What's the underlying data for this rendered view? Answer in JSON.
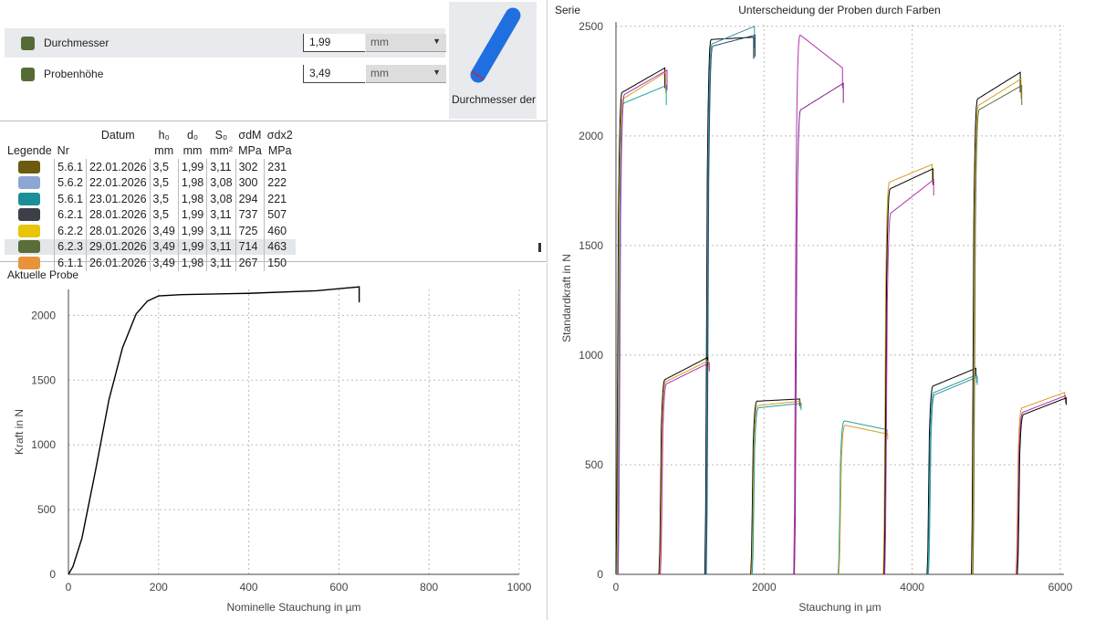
{
  "params": [
    {
      "label": "Durchmesser",
      "value": "1,99",
      "unit": "mm"
    },
    {
      "label": "Probenhöhe",
      "value": "3,49",
      "unit": "mm"
    }
  ],
  "image_caption": "Durchmesser der",
  "table": {
    "headers_top": [
      "",
      "",
      "Datum",
      "h₀",
      "d₀",
      "S₀",
      "σdM",
      "σdx2"
    ],
    "headers": [
      "Legende",
      "Nr",
      "",
      "mm",
      "mm",
      "mm²",
      "MPa",
      "MPa"
    ],
    "rows": [
      {
        "color": "#6b5a10",
        "cells": [
          "5.6.1",
          "22.01.2026",
          "3,5",
          "1,99",
          "3,11",
          "302",
          "231"
        ]
      },
      {
        "color": "#8ea6d4",
        "cells": [
          "5.6.2",
          "22.01.2026",
          "3,5",
          "1,98",
          "3,08",
          "300",
          "222"
        ]
      },
      {
        "color": "#1a8f9a",
        "cells": [
          "5.6.1",
          "23.01.2026",
          "3,5",
          "1,98",
          "3,08",
          "294",
          "221"
        ]
      },
      {
        "color": "#3a3f48",
        "cells": [
          "6.2.1",
          "28.01.2026",
          "3,5",
          "1,99",
          "3,11",
          "737",
          "507"
        ]
      },
      {
        "color": "#e8c40a",
        "cells": [
          "6.2.2",
          "28.01.2026",
          "3,49",
          "1,99",
          "3,11",
          "725",
          "460"
        ]
      },
      {
        "color": "#5a6e38",
        "cells": [
          "6.2.3",
          "29.01.2026",
          "3,49",
          "1,99",
          "3,11",
          "714",
          "463"
        ]
      },
      {
        "color": "#e8923a",
        "cells": [
          "6.1.1",
          "26.01.2026",
          "3,49",
          "1,98",
          "3,11",
          "267",
          "150"
        ]
      }
    ]
  },
  "left_title": "Aktuelle Probe",
  "right_title": "Serie",
  "chart_data": [
    {
      "type": "line",
      "title": "Aktuelle Probe",
      "xlabel": "Nominelle Stauchung in µm",
      "ylabel": "Kraft in N",
      "xlim": [
        0,
        1000
      ],
      "ylim": [
        0,
        2200
      ],
      "xticks": [
        0,
        200,
        400,
        600,
        800,
        1000
      ],
      "yticks": [
        0,
        500,
        1000,
        1500,
        2000
      ],
      "series": [
        {
          "name": "Aktuelle Probe",
          "color": "#000000",
          "x": [
            0,
            10,
            30,
            60,
            90,
            120,
            150,
            175,
            200,
            250,
            400,
            550,
            645,
            645
          ],
          "y": [
            0,
            60,
            280,
            800,
            1350,
            1750,
            2010,
            2110,
            2150,
            2160,
            2170,
            2190,
            2220,
            2100
          ]
        }
      ]
    },
    {
      "type": "line",
      "title": "Unterscheidung der Proben durch Farben",
      "xlabel": "Stauchung in µm",
      "ylabel": "Standardkraft in N",
      "xlim": [
        0,
        6050
      ],
      "ylim": [
        0,
        2520
      ],
      "xticks": [
        0,
        2000,
        4000,
        6000
      ],
      "yticks": [
        0,
        500,
        1000,
        1500,
        2000,
        2500
      ],
      "groups": [
        {
          "x0": 0,
          "curves": [
            {
              "c": "#000000",
              "p": 2200,
              "e": 2310
            },
            {
              "c": "#d4a020",
              "p": 2170,
              "e": 2290
            },
            {
              "c": "#20a0a0",
              "p": 2150,
              "e": 2230
            },
            {
              "c": "#b030b0",
              "p": 2190,
              "e": 2300
            }
          ]
        },
        {
          "x0": 1200,
          "curves": [
            {
              "c": "#000000",
              "p": 2440,
              "e": 2450
            },
            {
              "c": "#4090a0",
              "p": 2420,
              "e": 2500
            },
            {
              "c": "#205070",
              "p": 2410,
              "e": 2460
            }
          ]
        },
        {
          "x0": 580,
          "curves": [
            {
              "c": "#000000",
              "p": 890,
              "e": 990
            },
            {
              "c": "#d4a020",
              "p": 880,
              "e": 975
            },
            {
              "c": "#b030b0",
              "p": 870,
              "e": 965
            }
          ]
        },
        {
          "x0": 1820,
          "curves": [
            {
              "c": "#000000",
              "p": 790,
              "e": 800
            },
            {
              "c": "#d4a020",
              "p": 770,
              "e": 790
            },
            {
              "c": "#20a0a0",
              "p": 760,
              "e": 780
            }
          ]
        },
        {
          "x0": 2400,
          "curves": [
            {
              "c": "#b030b0",
              "p": 2460,
              "e": 2310
            },
            {
              "c": "#802080",
              "p": 2120,
              "e": 2240
            }
          ]
        },
        {
          "x0": 3000,
          "curves": [
            {
              "c": "#20a0a0",
              "p": 700,
              "e": 660
            },
            {
              "c": "#d4a020",
              "p": 680,
              "e": 640
            }
          ]
        },
        {
          "x0": 3610,
          "curves": [
            {
              "c": "#d4a020",
              "p": 1790,
              "e": 1870
            },
            {
              "c": "#000000",
              "p": 1760,
              "e": 1850
            },
            {
              "c": "#b030b0",
              "p": 1650,
              "e": 1800
            }
          ]
        },
        {
          "x0": 4200,
          "curves": [
            {
              "c": "#000000",
              "p": 860,
              "e": 940
            },
            {
              "c": "#20a0a0",
              "p": 830,
              "e": 910
            },
            {
              "c": "#4090a0",
              "p": 820,
              "e": 900
            }
          ]
        },
        {
          "x0": 4800,
          "curves": [
            {
              "c": "#000000",
              "p": 2170,
              "e": 2290
            },
            {
              "c": "#d4a020",
              "p": 2140,
              "e": 2260
            },
            {
              "c": "#5a6e38",
              "p": 2120,
              "e": 2230
            }
          ]
        },
        {
          "x0": 5400,
          "curves": [
            {
              "c": "#d4a020",
              "p": 760,
              "e": 830
            },
            {
              "c": "#b030b0",
              "p": 740,
              "e": 815
            },
            {
              "c": "#000000",
              "p": 730,
              "e": 805
            }
          ]
        }
      ]
    }
  ]
}
